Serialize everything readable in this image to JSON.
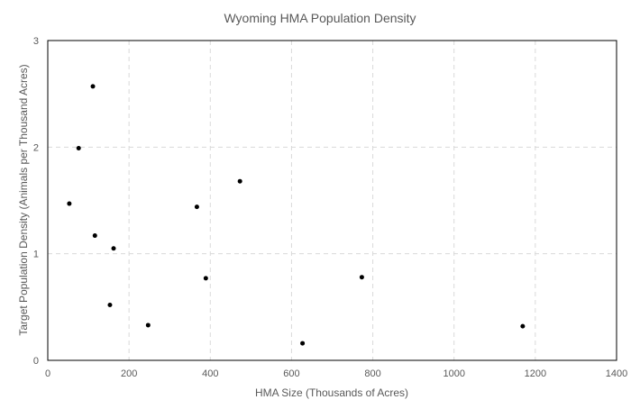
{
  "chart_data": {
    "type": "scatter",
    "title": "Wyoming HMA Population Density",
    "xlabel": "HMA Size (Thousands of Acres)",
    "ylabel": "Target Population Density (Animals per Thousand Acres)",
    "xlim": [
      0,
      1400
    ],
    "ylim": [
      0,
      3
    ],
    "xticks": [
      0,
      200,
      400,
      600,
      800,
      1000,
      1200,
      1400
    ],
    "yticks": [
      0,
      1,
      2,
      3
    ],
    "grid": true,
    "legend": "none",
    "marker_color": "#000000",
    "points": [
      {
        "x": 53,
        "y": 1.47
      },
      {
        "x": 76,
        "y": 1.99
      },
      {
        "x": 111,
        "y": 2.57
      },
      {
        "x": 116,
        "y": 1.17
      },
      {
        "x": 153,
        "y": 0.52
      },
      {
        "x": 162,
        "y": 1.05
      },
      {
        "x": 247,
        "y": 0.33
      },
      {
        "x": 367,
        "y": 1.44
      },
      {
        "x": 389,
        "y": 0.77
      },
      {
        "x": 473,
        "y": 1.68
      },
      {
        "x": 627,
        "y": 0.16
      },
      {
        "x": 773,
        "y": 0.78
      },
      {
        "x": 1169,
        "y": 0.32
      }
    ]
  }
}
